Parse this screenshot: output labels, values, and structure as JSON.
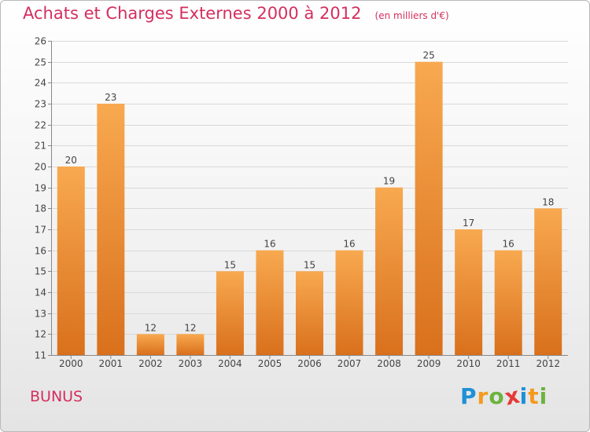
{
  "header": {
    "title": "Achats et Charges Externes 2000 à 2012",
    "subtitle": "(en milliers d'€)"
  },
  "footer": {
    "commune": "BUNUS",
    "brand": [
      "P",
      "r",
      "o",
      "x",
      "i",
      "t",
      "i"
    ],
    "brand_colors": [
      "#1e90d6",
      "#f39a1e",
      "#6cb33f",
      "#e53a36",
      "#1e90d6",
      "#f39a1e",
      "#6cb33f"
    ]
  },
  "chart_data": {
    "type": "bar",
    "title": "Achats et Charges Externes 2000 à 2012",
    "subtitle": "(en milliers d'€)",
    "categories": [
      "2000",
      "2001",
      "2002",
      "2003",
      "2004",
      "2005",
      "2006",
      "2007",
      "2008",
      "2009",
      "2010",
      "2011",
      "2012"
    ],
    "values": [
      20,
      23,
      12,
      12,
      15,
      16,
      15,
      16,
      19,
      25,
      17,
      16,
      18
    ],
    "ylim": [
      11,
      26
    ],
    "yticks": [
      11,
      12,
      13,
      14,
      15,
      16,
      17,
      18,
      19,
      20,
      21,
      22,
      23,
      24,
      25,
      26
    ],
    "grid": true,
    "bar_color_top": "#f8a950",
    "bar_color_bottom": "#d9701c"
  }
}
